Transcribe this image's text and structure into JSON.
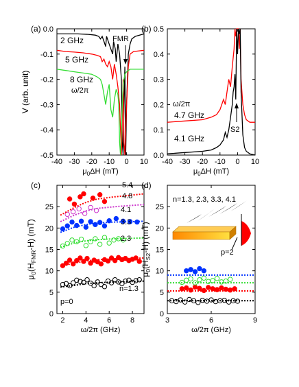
{
  "chart_data": [
    {
      "panel": "(a)",
      "type": "line",
      "xlabel": "μ0ΔH (mT)",
      "ylabel": "V (arb. unit)",
      "xlim": [
        -40,
        10
      ],
      "ylim": [
        -0.5,
        0
      ],
      "xticks": [
        "-40",
        "-30",
        "-20",
        "-10",
        "0",
        "10"
      ],
      "yticks": [
        "0.0",
        "-0.1",
        "-0.2",
        "-0.3",
        "-0.4",
        "-0.5"
      ],
      "annotations": [
        "FMR",
        "ω/2π"
      ],
      "series": [
        {
          "name": "2 GHz",
          "color": "#000000",
          "x": [
            -40,
            -28,
            -22,
            -18,
            -16,
            -15,
            -14,
            -13,
            -12,
            -11.5,
            -10.5,
            -9,
            -8,
            -7.5,
            -6.5,
            -6,
            -5,
            -4,
            -3,
            -2.5,
            -2,
            -1.5,
            -1,
            -0.5,
            0,
            1,
            2,
            3,
            5,
            10
          ],
          "y": [
            -0.02,
            -0.02,
            -0.022,
            -0.025,
            -0.03,
            -0.04,
            -0.03,
            -0.05,
            -0.07,
            -0.03,
            -0.05,
            -0.08,
            -0.1,
            -0.05,
            -0.08,
            -0.13,
            -0.06,
            -0.1,
            -0.2,
            -0.45,
            -0.5,
            -0.3,
            -0.15,
            -0.5,
            -0.3,
            -0.1,
            -0.06,
            -0.04,
            -0.03,
            -0.02
          ]
        },
        {
          "name": "5 GHz",
          "color": "#ff0000",
          "x": [
            -40,
            -35,
            -30,
            -25,
            -20,
            -17,
            -15,
            -14,
            -13,
            -12,
            -11,
            -10,
            -9,
            -8,
            -7,
            -6,
            -5,
            -4,
            -3,
            -2.5,
            -2,
            -1.5,
            -1,
            0,
            1,
            2,
            4,
            10
          ],
          "y": [
            -0.085,
            -0.09,
            -0.092,
            -0.095,
            -0.1,
            -0.105,
            -0.11,
            -0.13,
            -0.12,
            -0.14,
            -0.15,
            -0.13,
            -0.15,
            -0.2,
            -0.14,
            -0.18,
            -0.23,
            -0.3,
            -0.5,
            -0.35,
            -0.2,
            -0.45,
            -0.5,
            -0.3,
            -0.15,
            -0.1,
            -0.09,
            -0.085
          ]
        },
        {
          "name": "8 GHz",
          "color": "#33dd33",
          "x": [
            -40,
            -35,
            -30,
            -25,
            -20,
            -17,
            -15,
            -14,
            -13,
            -12,
            -11,
            -10,
            -9,
            -8,
            -7,
            -6,
            -5,
            -4.5,
            -4,
            -3.5,
            -3,
            -2,
            -1,
            0,
            2,
            5,
            10
          ],
          "y": [
            -0.16,
            -0.165,
            -0.17,
            -0.175,
            -0.18,
            -0.19,
            -0.2,
            -0.22,
            -0.26,
            -0.3,
            -0.25,
            -0.22,
            -0.32,
            -0.35,
            -0.28,
            -0.24,
            -0.26,
            -0.3,
            -0.45,
            -0.5,
            -0.4,
            -0.22,
            -0.18,
            -0.17,
            -0.16,
            -0.16,
            -0.16
          ]
        }
      ]
    },
    {
      "panel": "(b)",
      "type": "line",
      "xlabel": "μ0ΔH (mT)",
      "ylabel": "",
      "xlim": [
        -40,
        10
      ],
      "ylim": [
        0,
        0.5
      ],
      "xticks": [
        "-40",
        "-30",
        "-20",
        "-10",
        "0",
        "10"
      ],
      "yticks": [
        "0.5",
        "0.4",
        "0.3",
        "0.2",
        "0.1",
        "0.0"
      ],
      "annotations": [
        "S2",
        "ω/2π"
      ],
      "series": [
        {
          "name": "4.7 GHz",
          "color": "#ff0000",
          "x": [
            -40,
            -30,
            -20,
            -15,
            -12,
            -10,
            -8,
            -7,
            -6,
            -5,
            -4,
            -3,
            -2,
            -1.5,
            -1,
            -0.5,
            0,
            0.5,
            1,
            1.5,
            2,
            3,
            4,
            5,
            7,
            10
          ],
          "y": [
            0.13,
            0.135,
            0.14,
            0.15,
            0.16,
            0.18,
            0.22,
            0.2,
            0.25,
            0.3,
            0.27,
            0.35,
            0.42,
            0.5,
            0.47,
            0.5,
            0.5,
            0.5,
            0.42,
            0.5,
            0.3,
            0.2,
            0.16,
            0.14,
            0.13,
            0.13
          ]
        },
        {
          "name": "4.1 GHz",
          "color": "#000000",
          "x": [
            -40,
            -30,
            -20,
            -15,
            -12,
            -10,
            -8,
            -7,
            -6,
            -5,
            -4,
            -3,
            -2.5,
            -2,
            -1.5,
            -1,
            -0.5,
            0,
            0.5,
            1,
            1.5,
            2,
            3,
            4,
            5,
            7,
            10
          ],
          "y": [
            0.005,
            0.01,
            0.015,
            0.02,
            0.03,
            0.04,
            0.06,
            0.09,
            0.07,
            0.1,
            0.15,
            0.2,
            0.25,
            0.27,
            0.32,
            0.22,
            0.5,
            0.4,
            0.5,
            0.48,
            0.5,
            0.25,
            0.08,
            0.03,
            0.015,
            0.005,
            0.0
          ]
        }
      ]
    },
    {
      "panel": "(c)",
      "type": "scatter",
      "xlabel": "ω/2π (GHz)",
      "ylabel": "μ0(HFMR-H) (mT)",
      "xlim": [
        1.5,
        9
      ],
      "ylim": [
        0,
        30
      ],
      "xticks": [
        "2",
        "4",
        "6",
        "8"
      ],
      "yticks": [
        "0",
        "5",
        "10",
        "15",
        "20",
        "25"
      ],
      "annotations": [
        "p=0"
      ],
      "series": [
        {
          "name": "n=1.3",
          "color": "#000000",
          "filled": false,
          "x": [
            2.0,
            2.3,
            2.6,
            2.9,
            3.2,
            3.5,
            3.8,
            4.1,
            4.4,
            4.7,
            5.0,
            5.3,
            5.6,
            5.9,
            6.2,
            6.5,
            6.8,
            7.1,
            7.4,
            7.7,
            8.0,
            8.3,
            8.6
          ],
          "y": [
            6.8,
            7.0,
            6.5,
            7.2,
            7.8,
            7.5,
            7.3,
            7.9,
            7.1,
            6.5,
            7.4,
            6.8,
            6.3,
            7.6,
            7.2,
            7.9,
            7.4,
            7.0,
            7.6,
            7.8,
            7.3,
            7.7,
            7.9
          ],
          "fit": [
            6.2,
            6.6,
            7.0,
            7.2,
            7.4,
            7.5,
            7.6
          ]
        },
        {
          "name": "2.3",
          "color": "#ff0000",
          "filled": true,
          "x": [
            2.0,
            2.3,
            2.6,
            2.9,
            3.2,
            3.5,
            3.8,
            4.1,
            4.4,
            4.7,
            5.0,
            5.3,
            5.6,
            5.9,
            6.2,
            6.5,
            6.8,
            7.1,
            7.4,
            7.7,
            8.0,
            8.3,
            8.6
          ],
          "y": [
            11.2,
            11.8,
            12.5,
            11.6,
            12.4,
            13.0,
            12.2,
            12.9,
            11.8,
            12.5,
            12.1,
            11.6,
            12.6,
            12.3,
            13.0,
            12.4,
            13.1,
            12.6,
            12.9,
            12.4,
            12.7,
            13.0,
            12.2
          ],
          "fit": [
            11.0,
            11.8,
            12.3,
            12.6,
            12.8,
            12.9,
            13.0
          ]
        },
        {
          "name": "3.3",
          "color": "#33dd33",
          "filled": false,
          "x": [
            2.0,
            2.4,
            2.8,
            3.2,
            3.6,
            4.0,
            4.4,
            4.8,
            5.2,
            5.6,
            6.0,
            6.4,
            6.8,
            7.2
          ],
          "y": [
            15.8,
            16.4,
            17.2,
            16.8,
            17.4,
            15.9,
            16.8,
            17.5,
            16.2,
            17.8,
            16.5,
            17.2,
            17.5,
            17.2
          ],
          "fit": [
            15.5,
            16.5,
            17.0,
            17.3,
            17.5,
            17.6,
            17.7
          ]
        },
        {
          "name": "4.1",
          "color": "#0033ff",
          "filled": true,
          "x": [
            2.0,
            2.4,
            2.8,
            3.2,
            3.6,
            4.0,
            4.4,
            4.8,
            5.2,
            5.6,
            6.0,
            6.6,
            7.2,
            7.8,
            8.4
          ],
          "y": [
            19.8,
            20.5,
            21.4,
            20.6,
            21.6,
            20.2,
            21.5,
            20.8,
            21.3,
            20.5,
            21.7,
            22.2,
            21.6,
            21.5,
            21.4
          ],
          "fit": [
            19.0,
            20.2,
            20.8,
            21.2,
            21.4,
            21.5,
            21.6
          ]
        },
        {
          "name": "4.8",
          "color": "#cc33cc",
          "filled": false,
          "x": [
            2.4,
            2.9,
            3.4,
            3.9,
            4.4,
            4.9
          ],
          "y": [
            23.2,
            23.8,
            24.5,
            23.4,
            24.8,
            24.1
          ],
          "fit": [
            21.5,
            23.0,
            24.0,
            24.6,
            25.0,
            25.3,
            25.5
          ]
        },
        {
          "name": "5.4",
          "color": "#ff0000",
          "filled": true,
          "x": [
            2.6,
            3.0,
            3.5,
            3.8,
            4.6,
            5.2,
            5.6
          ],
          "y": [
            26.8,
            25.6,
            27.3,
            28.0,
            27.0,
            27.8,
            26.2
          ],
          "fit": [
            23.0,
            24.8,
            26.0,
            26.8,
            27.3,
            27.7,
            28.0
          ]
        }
      ]
    },
    {
      "panel": "(d)",
      "type": "scatter",
      "xlabel": "ω/2π (GHz)",
      "ylabel": "μ0(HS2-H) (mT)",
      "xlim": [
        3,
        9
      ],
      "ylim": [
        0,
        30
      ],
      "xticks": [
        "3",
        "6",
        "9"
      ],
      "yticks": [
        "0",
        "5",
        "10",
        "15",
        "20",
        "25"
      ],
      "annotations": [
        "n=1.3, 2.3, 3.3, 4.1",
        "p=2"
      ],
      "series": [
        {
          "name": "1.3",
          "color": "#000000",
          "filled": false,
          "x": [
            3.3,
            3.6,
            3.9,
            4.2,
            4.5,
            4.8,
            5.1,
            5.4,
            5.7,
            6.0,
            6.3,
            6.6,
            6.9,
            7.2,
            7.5,
            7.8
          ],
          "y": [
            3.0,
            2.8,
            3.2,
            2.7,
            3.3,
            3.0,
            2.6,
            3.1,
            2.9,
            3.2,
            2.8,
            3.0,
            3.1,
            2.7,
            3.0,
            2.9
          ],
          "fit_level": 3.0
        },
        {
          "name": "2.3",
          "color": "#ff0000",
          "filled": true,
          "x": [
            4.0,
            4.3,
            4.6,
            4.9,
            5.2,
            5.5,
            5.8,
            6.1,
            6.4,
            6.7,
            7.0,
            7.3,
            7.6
          ],
          "y": [
            5.8,
            6.0,
            5.5,
            6.2,
            5.9,
            5.4,
            6.1,
            5.8,
            5.6,
            6.0,
            5.7,
            5.5,
            5.8
          ],
          "fit_level": 5.3
        },
        {
          "name": "3.3",
          "color": "#33dd33",
          "filled": false,
          "x": [
            4.0,
            4.3,
            4.6,
            4.9,
            5.2,
            5.5,
            5.8,
            6.1,
            6.4,
            6.7,
            7.0,
            7.3
          ],
          "y": [
            7.3,
            7.8,
            8.1,
            7.2,
            7.9,
            8.3,
            7.5,
            7.7,
            8.2,
            7.4,
            7.6,
            8.0
          ],
          "fit_level": 7.2
        },
        {
          "name": "4.1",
          "color": "#0033ff",
          "filled": true,
          "x": [
            4.3,
            4.6,
            4.9,
            5.2,
            5.5
          ],
          "y": [
            10.0,
            10.3,
            9.8,
            10.5,
            10.0
          ],
          "fit_level": 9.0
        }
      ]
    }
  ]
}
